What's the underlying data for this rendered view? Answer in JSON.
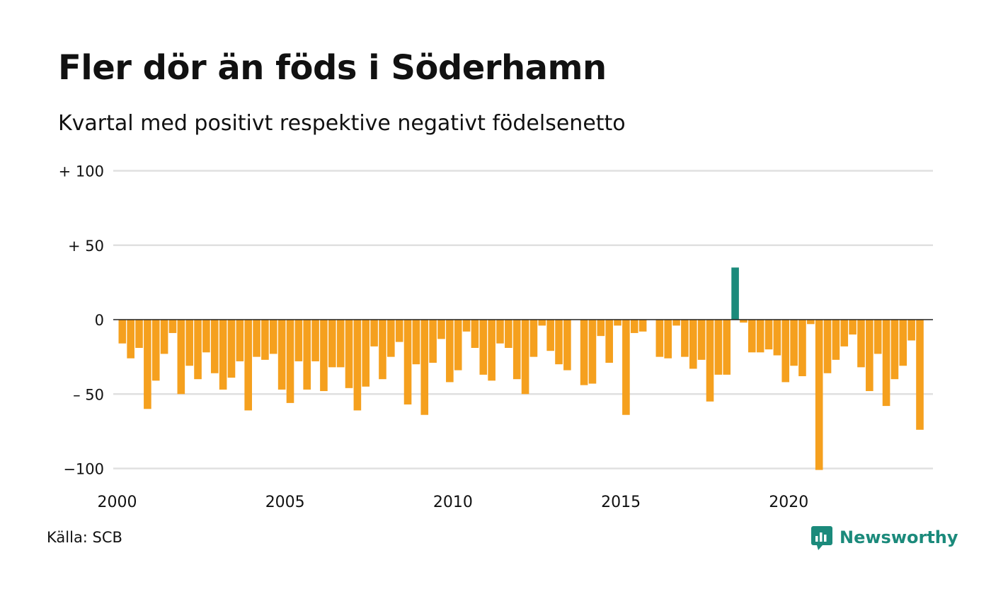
{
  "title": "Fler dör än föds i Söderhamn",
  "subtitle": "Kvartal med positivt respektive negativt födelsenetto",
  "source": "Källa: SCB",
  "brand": "Newsworthy",
  "colors": {
    "negative": "#f5a01e",
    "positive": "#1b8a7b",
    "grid": "#e0e0e0",
    "zero": "#222222"
  },
  "chart_data": {
    "type": "bar",
    "title": "Fler dör än föds i Söderhamn",
    "subtitle": "Kvartal med positivt respektive negativt födelsenetto",
    "xlabel": "",
    "ylabel": "",
    "ylim": [
      -100,
      100
    ],
    "y_ticks": [
      {
        "value": 100,
        "label": "+ 100"
      },
      {
        "value": 50,
        "label": "+  50"
      },
      {
        "value": 0,
        "label": "0"
      },
      {
        "value": -50,
        "label": "– 50"
      },
      {
        "value": -100,
        "label": "−100"
      }
    ],
    "x_ticks": [
      "2000",
      "2005",
      "2010",
      "2015",
      "2020"
    ],
    "grid": true,
    "start": "2000 Q1",
    "frequency": "quarterly",
    "values": [
      -16,
      -26,
      -19,
      -60,
      -41,
      -23,
      -9,
      -50,
      -31,
      -40,
      -22,
      -36,
      -47,
      -39,
      -28,
      -61,
      -25,
      -27,
      -23,
      -47,
      -56,
      -28,
      -47,
      -28,
      -48,
      -32,
      -32,
      -46,
      -61,
      -45,
      -18,
      -40,
      -25,
      -15,
      -57,
      -30,
      -64,
      -29,
      -13,
      -42,
      -34,
      -8,
      -19,
      -37,
      -41,
      -16,
      -19,
      -40,
      -50,
      -25,
      -4,
      -21,
      -30,
      -34,
      null,
      -44,
      -43,
      -11,
      -29,
      -4,
      -64,
      -9,
      -8,
      null,
      -25,
      -26,
      -4,
      -25,
      -33,
      -27,
      -55,
      -37,
      -37,
      35,
      -2,
      -22,
      -22,
      -20,
      -24,
      -42,
      -31,
      -38,
      -3,
      -101,
      -36,
      -27,
      -18,
      -10,
      -32,
      -48,
      -23,
      -58,
      -40,
      -31,
      -14,
      -74
    ]
  }
}
